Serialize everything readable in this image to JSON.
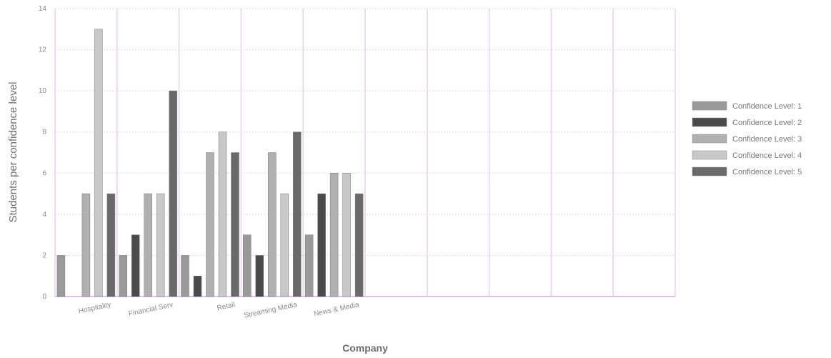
{
  "chart_data": {
    "type": "bar",
    "title": "",
    "xlabel": "Company",
    "ylabel": "Students per confidence level",
    "categories": [
      "Hospitality",
      "Financial Serv",
      "Retail",
      "Streaming Media",
      "News & Media"
    ],
    "slot_count": 10,
    "ylim": [
      0,
      14
    ],
    "yticks": [
      0,
      2,
      4,
      6,
      8,
      10,
      12,
      14
    ],
    "grid": true,
    "legend_position": "right",
    "series": [
      {
        "name": "Confidence Level: 1",
        "color": "#9a9a9a",
        "values": [
          2,
          2,
          2,
          3,
          3
        ]
      },
      {
        "name": "Confidence Level: 2",
        "color": "#4a4a4a",
        "values": [
          0,
          3,
          1,
          2,
          5
        ]
      },
      {
        "name": "Confidence Level: 3",
        "color": "#b0b0b0",
        "values": [
          5,
          5,
          7,
          7,
          6
        ]
      },
      {
        "name": "Confidence Level: 4",
        "color": "#c8c8c8",
        "values": [
          13,
          5,
          8,
          5,
          6
        ]
      },
      {
        "name": "Confidence Level: 5",
        "color": "#6a6a6a",
        "values": [
          5,
          10,
          7,
          8,
          5
        ]
      }
    ]
  },
  "colors": {
    "grid": "#e2d4ec",
    "axis": "#d7c4e6"
  }
}
